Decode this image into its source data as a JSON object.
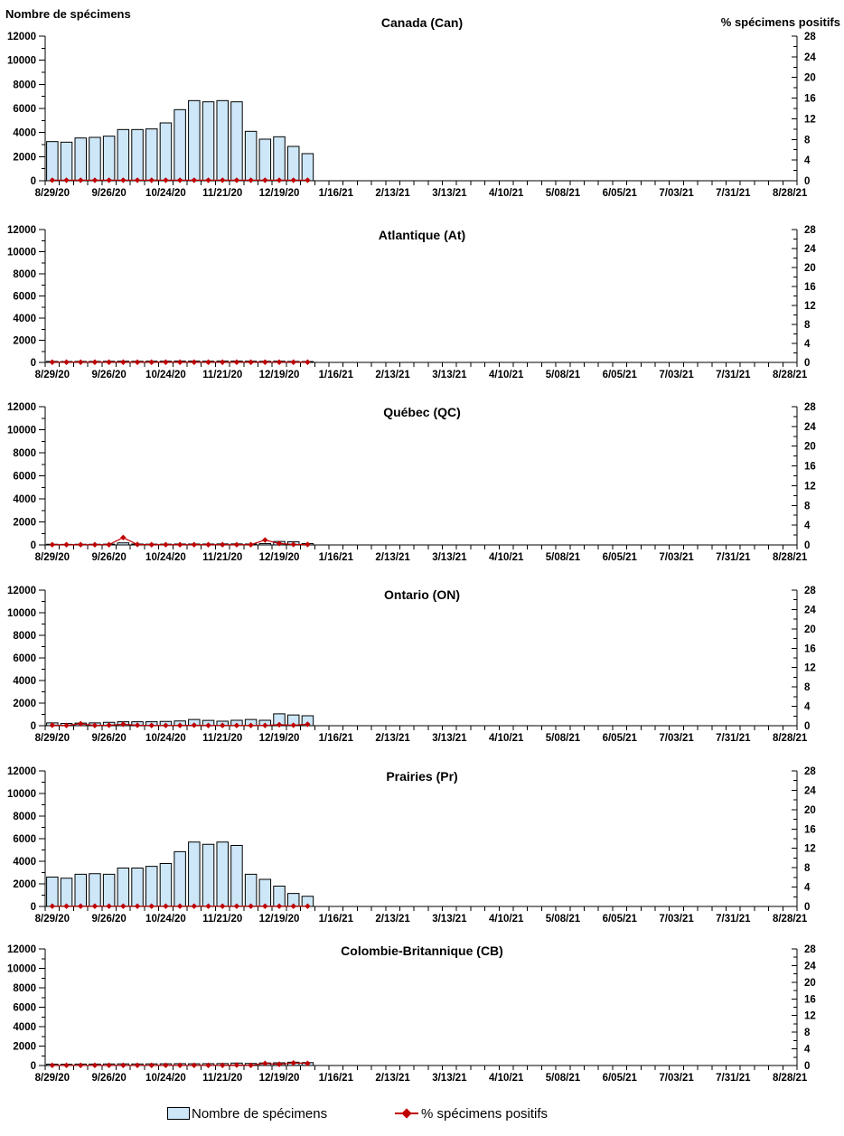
{
  "axes": {
    "left_title": "Nombre de spécimens",
    "right_title": "% spécimens positifs",
    "left_ticks": [
      "0",
      "2000",
      "4000",
      "6000",
      "8000",
      "10000",
      "12000"
    ],
    "right_ticks": [
      "0",
      "4",
      "8",
      "12",
      "16",
      "20",
      "24",
      "28"
    ],
    "left_range": [
      0,
      12000
    ],
    "right_range": [
      0,
      28
    ],
    "x_tick_labels": [
      "8/29/20",
      "9/26/20",
      "10/24/20",
      "11/21/20",
      "12/19/20",
      "1/16/21",
      "2/13/21",
      "3/13/21",
      "4/10/21",
      "5/08/21",
      "6/05/21",
      "7/03/21",
      "7/31/21",
      "8/28/21"
    ],
    "weeks_total": 53
  },
  "legend": {
    "bar_label": "Nombre de spécimens",
    "line_label": "% spécimens positifs"
  },
  "colors": {
    "bar_fill": "#cde7f8",
    "bar_stroke": "#000000",
    "line": "#c00000",
    "axis": "#000000"
  },
  "week_categories": [
    "8/29/20",
    "9/05/20",
    "9/12/20",
    "9/19/20",
    "9/26/20",
    "10/03/20",
    "10/10/20",
    "10/17/20",
    "10/24/20",
    "10/31/20",
    "11/07/20",
    "11/14/20",
    "11/21/20",
    "11/28/20",
    "12/05/20",
    "12/12/20",
    "12/19/20",
    "12/26/20",
    "1/02/21"
  ],
  "chart_data": [
    {
      "type": "bar+line",
      "title": "Canada (Can)",
      "ylabel_left": "Nombre de spécimens",
      "ylabel_right": "% spécimens positifs",
      "ylim_left": [
        0,
        12000
      ],
      "ylim_right": [
        0,
        28
      ],
      "series": [
        {
          "name": "Nombre de spécimens",
          "type": "bar",
          "values": [
            3250,
            3200,
            3550,
            3600,
            3700,
            4250,
            4250,
            4300,
            4800,
            5900,
            6650,
            6550,
            6650,
            6550,
            4100,
            3450,
            3650,
            2850,
            2250
          ]
        },
        {
          "name": "% spécimens positifs",
          "type": "line",
          "values": [
            0.1,
            0.1,
            0.1,
            0.1,
            0.1,
            0.1,
            0.1,
            0.1,
            0.1,
            0.1,
            0.1,
            0.1,
            0.1,
            0.1,
            0.1,
            0.1,
            0.1,
            0.1,
            0.1
          ]
        }
      ]
    },
    {
      "type": "bar+line",
      "title": "Atlantique (At)",
      "ylim_left": [
        0,
        12000
      ],
      "ylim_right": [
        0,
        28
      ],
      "series": [
        {
          "name": "Nombre de spécimens",
          "type": "bar",
          "values": [
            90,
            80,
            90,
            90,
            100,
            110,
            100,
            110,
            110,
            120,
            120,
            110,
            120,
            120,
            110,
            100,
            110,
            90,
            80
          ]
        },
        {
          "name": "% spécimens positifs",
          "type": "line",
          "values": [
            0.05,
            0.05,
            0.05,
            0.05,
            0.05,
            0.05,
            0.05,
            0.05,
            0.05,
            0.05,
            0.05,
            0.05,
            0.05,
            0.05,
            0.05,
            0.05,
            0.05,
            0.05,
            0.05
          ]
        }
      ]
    },
    {
      "type": "bar+line",
      "title": "Québec (QC)",
      "ylim_left": [
        0,
        12000
      ],
      "ylim_right": [
        0,
        28
      ],
      "series": [
        {
          "name": "Nombre de spécimens",
          "type": "bar",
          "values": [
            60,
            50,
            60,
            60,
            70,
            180,
            80,
            70,
            70,
            80,
            80,
            80,
            90,
            90,
            80,
            120,
            300,
            280,
            120
          ]
        },
        {
          "name": "% spécimens positifs",
          "type": "line",
          "values": [
            0.05,
            0.05,
            0.05,
            0.05,
            0.05,
            1.5,
            0.1,
            0.05,
            0.05,
            0.05,
            0.05,
            0.05,
            0.05,
            0.05,
            0.05,
            1.0,
            0.3,
            0.1,
            0.1
          ]
        }
      ]
    },
    {
      "type": "bar+line",
      "title": "Ontario (ON)",
      "ylim_left": [
        0,
        12000
      ],
      "ylim_right": [
        0,
        28
      ],
      "series": [
        {
          "name": "Nombre de spécimens",
          "type": "bar",
          "values": [
            250,
            200,
            230,
            250,
            300,
            350,
            350,
            350,
            380,
            420,
            550,
            470,
            400,
            480,
            550,
            480,
            1050,
            950,
            880
          ]
        },
        {
          "name": "% spécimens positifs",
          "type": "line",
          "values": [
            0.1,
            0.05,
            0.4,
            0.05,
            0.1,
            0.3,
            0.1,
            0.05,
            0.05,
            0.05,
            0.1,
            0.05,
            0.05,
            0.05,
            0.05,
            0.05,
            0.2,
            0.1,
            0.3
          ]
        }
      ]
    },
    {
      "type": "bar+line",
      "title": "Prairies (Pr)",
      "ylim_left": [
        0,
        12000
      ],
      "ylim_right": [
        0,
        28
      ],
      "series": [
        {
          "name": "Nombre de spécimens",
          "type": "bar",
          "values": [
            2600,
            2500,
            2850,
            2900,
            2850,
            3400,
            3400,
            3550,
            3800,
            4850,
            5700,
            5500,
            5700,
            5400,
            2850,
            2400,
            1800,
            1150,
            900
          ]
        },
        {
          "name": "% spécimens positifs",
          "type": "line",
          "values": [
            0.05,
            0.05,
            0.05,
            0.05,
            0.05,
            0.05,
            0.05,
            0.05,
            0.05,
            0.05,
            0.05,
            0.05,
            0.05,
            0.05,
            0.05,
            0.05,
            0.05,
            0.05,
            0.05
          ]
        }
      ]
    },
    {
      "type": "bar+line",
      "title": "Colombie-Britannique (CB)",
      "ylim_left": [
        0,
        12000
      ],
      "ylim_right": [
        0,
        28
      ],
      "series": [
        {
          "name": "Nombre de spécimens",
          "type": "bar",
          "values": [
            140,
            130,
            150,
            150,
            160,
            170,
            160,
            170,
            180,
            190,
            180,
            190,
            200,
            250,
            210,
            260,
            280,
            340,
            300
          ]
        },
        {
          "name": "% spécimens positifs",
          "type": "line",
          "values": [
            0.05,
            0.05,
            0.05,
            0.05,
            0.05,
            0.05,
            0.05,
            0.05,
            0.05,
            0.05,
            0.05,
            0.05,
            0.05,
            0.1,
            0.05,
            0.5,
            0.3,
            0.6,
            0.5
          ]
        }
      ]
    }
  ]
}
